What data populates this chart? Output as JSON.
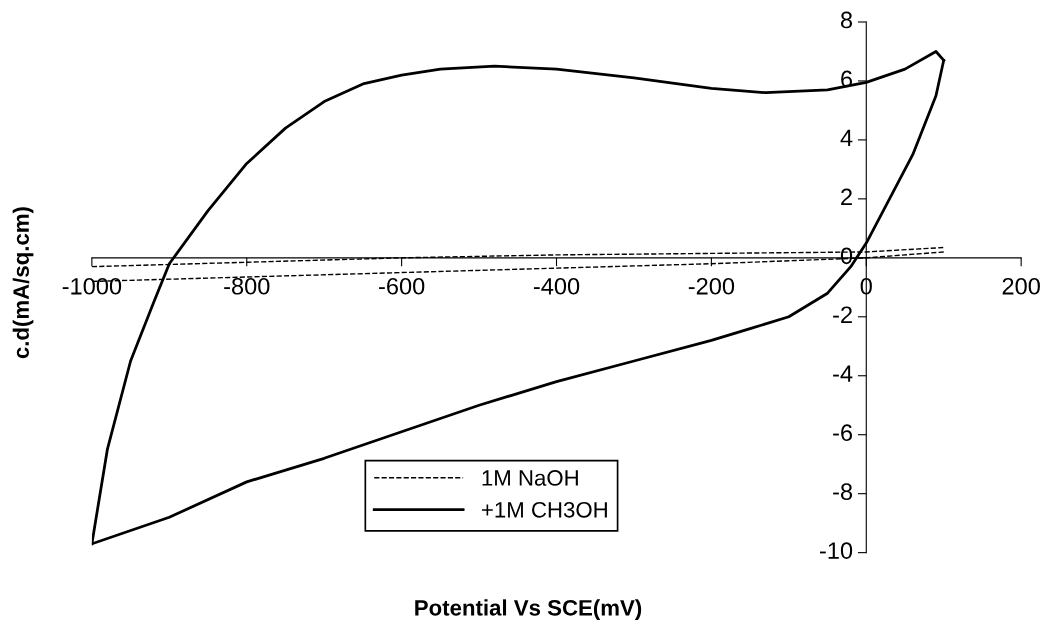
{
  "chart_data": {
    "type": "line",
    "xlabel": "Potential Vs SCE(mV)",
    "ylabel": "c.d(mA/sq.cm)",
    "xlim": [
      -1000,
      200
    ],
    "xticks": [
      -1000,
      -800,
      -600,
      -400,
      -200,
      0,
      200
    ],
    "ylim": [
      -10,
      8
    ],
    "yticks": [
      -10,
      -8,
      -6,
      -4,
      -2,
      0,
      2,
      4,
      6,
      8
    ],
    "grid": false,
    "legend": "bottom",
    "marker": "none",
    "series": [
      {
        "name": "1M NaOH",
        "color": "#000000",
        "line_style": "dashed",
        "x": [
          -1000,
          -800,
          -600,
          -400,
          -200,
          0,
          100
        ],
        "values": [
          -0.3,
          -0.15,
          0,
          0.1,
          0.15,
          0.2,
          0.35
        ]
      },
      {
        "color": "#000000",
        "line_style": "dashed",
        "x": [
          100,
          0,
          -200,
          -400,
          -600,
          -800,
          -1000
        ],
        "values": [
          0.2,
          0,
          -0.2,
          -0.35,
          -0.5,
          -0.65,
          -0.8
        ]
      },
      {
        "name": "+1M CH3OH",
        "color": "#000000",
        "line_style": "solid",
        "x": [
          -1000,
          -980,
          -950,
          -920,
          -900,
          -850,
          -800,
          -750,
          -700,
          -650,
          -600,
          -550,
          -480,
          -400,
          -300,
          -200,
          -130,
          -50,
          0,
          50,
          90,
          100
        ],
        "values": [
          -9.7,
          -6.5,
          -3.5,
          -1.5,
          -0.2,
          1.6,
          3.2,
          4.4,
          5.3,
          5.9,
          6.2,
          6.4,
          6.5,
          6.4,
          6.1,
          5.75,
          5.6,
          5.7,
          5.95,
          6.4,
          7.0,
          6.7
        ]
      },
      {
        "color": "#000000",
        "line_style": "solid",
        "x": [
          100,
          90,
          60,
          30,
          0,
          -20,
          -50,
          -100,
          -150,
          -200,
          -300,
          -400,
          -500,
          -600,
          -700,
          -800,
          -900,
          -1000
        ],
        "values": [
          6.7,
          5.5,
          3.5,
          2.0,
          0.5,
          -0.3,
          -1.2,
          -2.0,
          -2.4,
          -2.8,
          -3.5,
          -4.2,
          -5.0,
          -5.9,
          -6.8,
          -7.6,
          -8.8,
          -9.7
        ]
      }
    ]
  }
}
